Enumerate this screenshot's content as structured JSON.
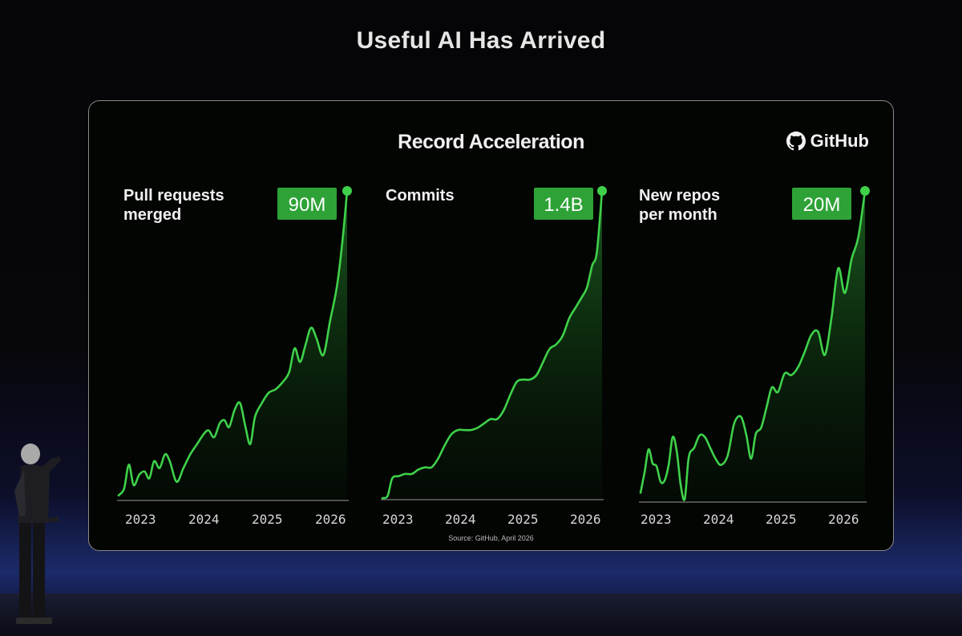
{
  "slide": {
    "title": "Useful AI Has Arrived"
  },
  "panel": {
    "title": "Record Acceleration",
    "brand": "GitHub",
    "brand_icon": "github-octocat-icon",
    "source": "Source: GitHub, April 2026"
  },
  "colors": {
    "accent": "#3fd14a",
    "badge": "#2ea236",
    "background": "#030503",
    "axis": "#9a9a9a"
  },
  "chart_data": [
    {
      "type": "area",
      "label_lines": [
        "Pull requests",
        "merged"
      ],
      "badge": "90M",
      "x_ticks": [
        "2023",
        "2024",
        "2025",
        "2026"
      ],
      "x_range": [
        2023.0,
        2026.35
      ],
      "y_range": [
        0,
        90
      ],
      "x": [
        2023.0,
        2023.08,
        2023.15,
        2023.22,
        2023.3,
        2023.38,
        2023.45,
        2023.52,
        2023.6,
        2023.68,
        2023.75,
        2023.85,
        2023.95,
        2024.05,
        2024.15,
        2024.25,
        2024.32,
        2024.4,
        2024.48,
        2024.55,
        2024.62,
        2024.7,
        2024.78,
        2024.86,
        2024.93,
        2025.0,
        2025.1,
        2025.2,
        2025.3,
        2025.4,
        2025.5,
        2025.58,
        2025.66,
        2025.74,
        2025.82,
        2025.9,
        2026.0,
        2026.1,
        2026.2,
        2026.28,
        2026.35
      ],
      "y": [
        1,
        3,
        10,
        4,
        7,
        8,
        6,
        11,
        9,
        13,
        11,
        5,
        9,
        13,
        16,
        19,
        20,
        18,
        22,
        23,
        21,
        26,
        28,
        21,
        16,
        24,
        28,
        31,
        32,
        34,
        37,
        44,
        40,
        45,
        50,
        47,
        42,
        52,
        62,
        75,
        90
      ]
    },
    {
      "type": "area",
      "label_lines": [
        "Commits"
      ],
      "badge": "1.4B",
      "x_ticks": [
        "2023",
        "2024",
        "2025",
        "2026"
      ],
      "x_range": [
        2023.0,
        2026.35
      ],
      "y_range": [
        0,
        1.4
      ],
      "x": [
        2023.0,
        2023.08,
        2023.15,
        2023.25,
        2023.35,
        2023.45,
        2023.55,
        2023.65,
        2023.75,
        2023.85,
        2023.95,
        2024.05,
        2024.15,
        2024.25,
        2024.35,
        2024.45,
        2024.55,
        2024.65,
        2024.75,
        2024.85,
        2024.95,
        2025.05,
        2025.15,
        2025.25,
        2025.35,
        2025.45,
        2025.55,
        2025.65,
        2025.75,
        2025.85,
        2025.95,
        2026.05,
        2026.12,
        2026.2,
        2026.27,
        2026.35
      ],
      "y": [
        0.0,
        0.01,
        0.09,
        0.1,
        0.11,
        0.11,
        0.13,
        0.14,
        0.14,
        0.18,
        0.24,
        0.29,
        0.31,
        0.31,
        0.31,
        0.32,
        0.34,
        0.36,
        0.36,
        0.4,
        0.47,
        0.53,
        0.54,
        0.54,
        0.56,
        0.62,
        0.68,
        0.7,
        0.74,
        0.82,
        0.87,
        0.92,
        0.96,
        1.06,
        1.12,
        1.4
      ]
    },
    {
      "type": "area",
      "label_lines": [
        "New repos",
        "per month"
      ],
      "badge": "20M",
      "x_ticks": [
        "2023",
        "2024",
        "2025",
        "2026"
      ],
      "x_range": [
        2023.0,
        2026.35
      ],
      "y_range": [
        0,
        20
      ],
      "x": [
        2023.0,
        2023.06,
        2023.12,
        2023.18,
        2023.24,
        2023.3,
        2023.36,
        2023.42,
        2023.48,
        2023.54,
        2023.6,
        2023.66,
        2023.72,
        2023.8,
        2023.88,
        2023.96,
        2024.04,
        2024.12,
        2024.2,
        2024.3,
        2024.4,
        2024.5,
        2024.58,
        2024.65,
        2024.72,
        2024.8,
        2024.88,
        2024.96,
        2025.05,
        2025.15,
        2025.25,
        2025.35,
        2025.45,
        2025.55,
        2025.65,
        2025.75,
        2025.85,
        2025.95,
        2026.05,
        2026.15,
        2026.25,
        2026.35
      ],
      "y": [
        0.5,
        1.8,
        3.3,
        2.4,
        2.2,
        1.2,
        1.3,
        2.3,
        4.1,
        3.2,
        1.0,
        0.1,
        2.8,
        3.4,
        4.2,
        4.1,
        3.4,
        2.7,
        2.3,
        2.9,
        5.0,
        5.4,
        4.2,
        2.7,
        4.3,
        4.7,
        6.0,
        7.3,
        7.0,
        8.2,
        8.1,
        8.6,
        9.6,
        10.7,
        10.9,
        9.4,
        11.8,
        15.0,
        13.4,
        15.6,
        17.0,
        20.0
      ]
    }
  ]
}
